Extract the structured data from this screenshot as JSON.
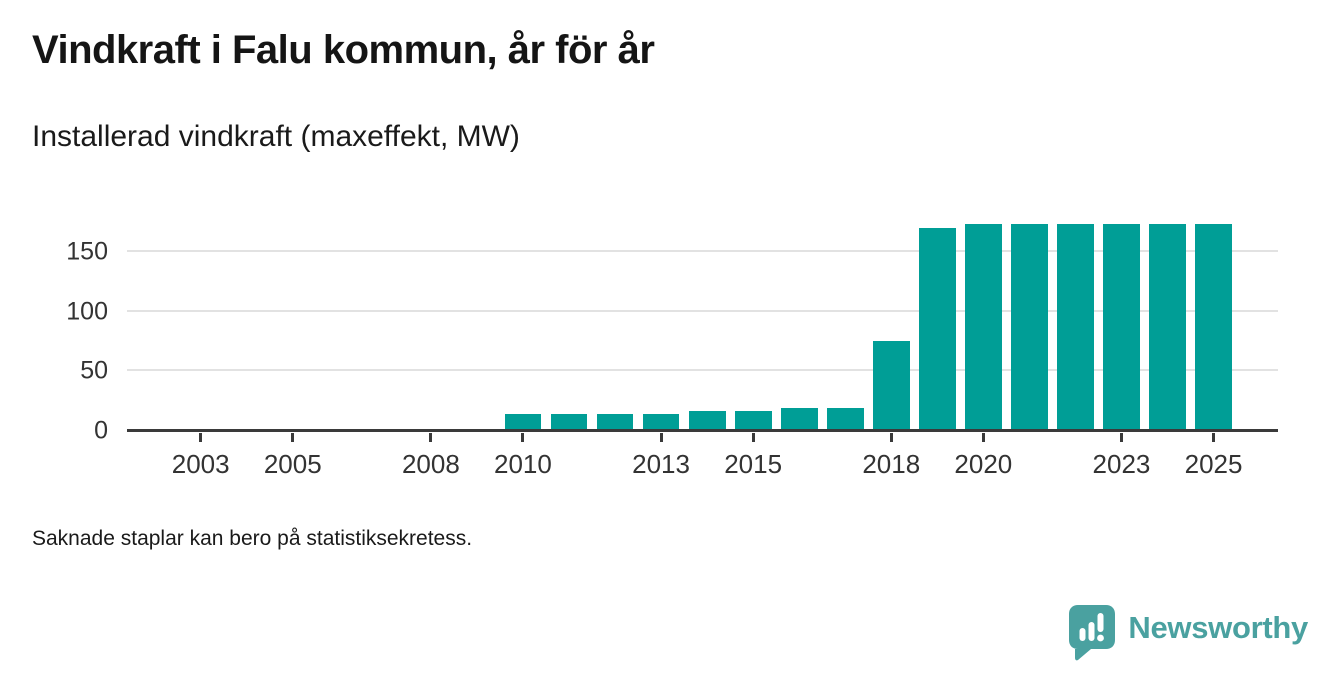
{
  "header": {
    "title": "Vindkraft i Falu kommun, år för år",
    "subtitle": "Installerad vindkraft (maxeffekt, MW)"
  },
  "footer": {
    "note": "Saknade staplar kan bero på statistiksekretess."
  },
  "brand": {
    "name": "Newsworthy",
    "color": "#4aa1a0"
  },
  "chart_data": {
    "type": "bar",
    "title": "Vindkraft i Falu kommun, år för år",
    "subtitle": "Installerad vindkraft (maxeffekt, MW)",
    "unit": "MW",
    "x": [
      2010,
      2011,
      2012,
      2013,
      2014,
      2015,
      2016,
      2017,
      2018,
      2019,
      2020,
      2021,
      2022,
      2023,
      2024,
      2025
    ],
    "values": [
      14,
      14,
      14,
      14,
      17,
      17,
      19,
      19,
      75,
      170,
      173,
      173,
      173,
      173,
      173,
      173
    ],
    "missing_x": [
      2003,
      2004,
      2005,
      2006,
      2007,
      2008,
      2009
    ],
    "x_tick_labels": [
      "2003",
      "2005",
      "2008",
      "2010",
      "2013",
      "2015",
      "2018",
      "2020",
      "2023",
      "2025"
    ],
    "y_ticks": [
      0,
      50,
      100,
      150
    ],
    "x_domain": [
      2001.4,
      2026.4
    ],
    "y_domain": [
      0,
      185
    ],
    "grid": "horizontal",
    "legend": "none",
    "bar_color": "#009e96",
    "axis_color": "#3a3a3a",
    "gridline_color": "#e2e2e2"
  }
}
